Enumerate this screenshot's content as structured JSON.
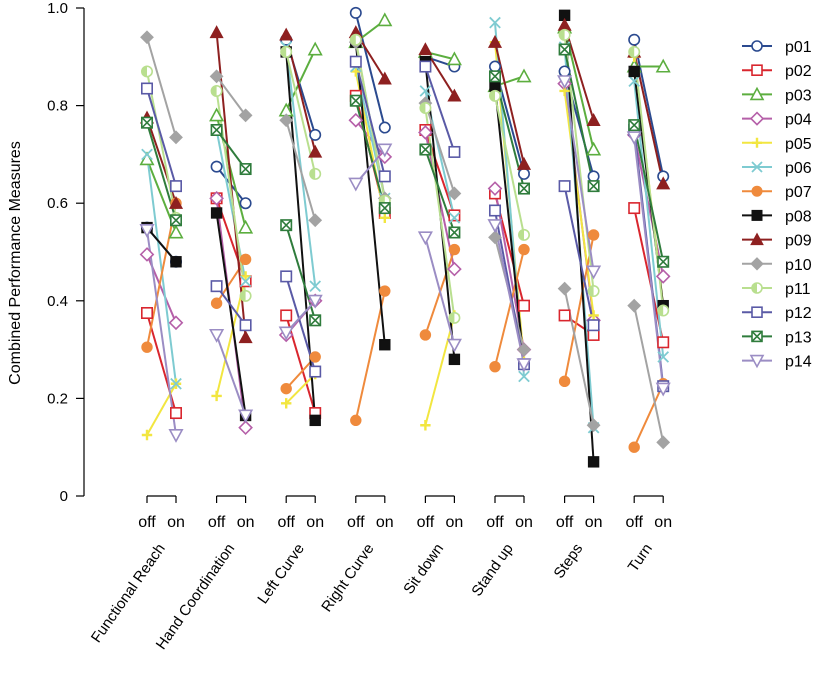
{
  "chart_data": {
    "type": "line",
    "title": "",
    "ylabel": "Combined  Performance Measures",
    "xlabel": "",
    "ylim": [
      0,
      1
    ],
    "yticks": [
      "0",
      "0.2",
      "0.4",
      "0.6",
      "0.8",
      "1.0"
    ],
    "ytick_values": [
      0,
      0.2,
      0.4,
      0.6,
      0.8,
      1.0
    ],
    "condition_labels": [
      "off",
      "on"
    ],
    "categories": [
      "Functional Reach",
      "Hand Coordination",
      "Left Curve",
      "Right Curve",
      "Sit down",
      "Stand up",
      "Steps",
      "Turn"
    ],
    "legend_position": "right",
    "series": [
      {
        "name": "p01",
        "color": "#2b4a8f",
        "marker": "circle-open",
        "values": [
          [
            0.55,
            0.48
          ],
          [
            0.675,
            0.6
          ],
          [
            0.935,
            0.74
          ],
          [
            0.99,
            0.755
          ],
          [
            0.9,
            0.88
          ],
          [
            0.88,
            0.66
          ],
          [
            0.87,
            0.655
          ],
          [
            0.935,
            0.655
          ]
        ]
      },
      {
        "name": "p02",
        "color": "#d9262e",
        "marker": "square-open",
        "values": [
          [
            0.375,
            0.17
          ],
          [
            0.61,
            0.44
          ],
          [
            0.37,
            0.17
          ],
          [
            0.82,
            0.58
          ],
          [
            0.75,
            0.575
          ],
          [
            0.62,
            0.39
          ],
          [
            0.37,
            0.33
          ],
          [
            0.59,
            0.315
          ]
        ]
      },
      {
        "name": "p03",
        "color": "#5cae3f",
        "marker": "triangle-up-open",
        "values": [
          [
            0.69,
            0.54
          ],
          [
            0.78,
            0.55
          ],
          [
            0.79,
            0.915
          ],
          [
            0.93,
            0.975
          ],
          [
            0.91,
            0.895
          ],
          [
            0.84,
            0.86
          ],
          [
            0.96,
            0.71
          ],
          [
            0.88,
            0.88
          ]
        ]
      },
      {
        "name": "p04",
        "color": "#b55fa8",
        "marker": "diamond-open",
        "values": [
          [
            0.495,
            0.355
          ],
          [
            0.61,
            0.14
          ],
          [
            0.33,
            0.4
          ],
          [
            0.77,
            0.695
          ],
          [
            0.745,
            0.465
          ],
          [
            0.63,
            0.3
          ],
          [
            0.845,
            0.36
          ],
          [
            0.74,
            0.45
          ]
        ]
      },
      {
        "name": "p05",
        "color": "#f2e640",
        "marker": "cross-star",
        "values": [
          [
            0.125,
            0.23
          ],
          [
            0.205,
            0.45
          ],
          [
            0.19,
            0.25
          ],
          [
            0.87,
            0.57
          ],
          [
            0.145,
            0.37
          ],
          [
            0.93,
            0.275
          ],
          [
            0.83,
            0.37
          ],
          [
            0.9,
            0.39
          ]
        ]
      },
      {
        "name": "p06",
        "color": "#7ecbd1",
        "marker": "x",
        "values": [
          [
            0.7,
            0.23
          ],
          [
            0.75,
            0.44
          ],
          [
            0.92,
            0.43
          ],
          [
            0.88,
            0.61
          ],
          [
            0.83,
            0.57
          ],
          [
            0.97,
            0.245
          ],
          [
            0.92,
            0.14
          ],
          [
            0.85,
            0.285
          ]
        ]
      },
      {
        "name": "p07",
        "color": "#ef8a3c",
        "marker": "circle-filled",
        "values": [
          [
            0.305,
            0.6
          ],
          [
            0.395,
            0.485
          ],
          [
            0.22,
            0.285
          ],
          [
            0.155,
            0.42
          ],
          [
            0.33,
            0.505
          ],
          [
            0.265,
            0.505
          ],
          [
            0.235,
            0.535
          ],
          [
            0.1,
            0.23
          ]
        ]
      },
      {
        "name": "p08",
        "color": "#111111",
        "marker": "square-filled",
        "values": [
          [
            0.55,
            0.48
          ],
          [
            0.58,
            0.165
          ],
          [
            0.91,
            0.155
          ],
          [
            0.93,
            0.31
          ],
          [
            0.89,
            0.28
          ],
          [
            0.84,
            0.27
          ],
          [
            0.985,
            0.07
          ],
          [
            0.87,
            0.39
          ]
        ]
      },
      {
        "name": "p09",
        "color": "#8e2020",
        "marker": "triangle-up-filled",
        "values": [
          [
            0.775,
            0.6
          ],
          [
            0.95,
            0.325
          ],
          [
            0.945,
            0.705
          ],
          [
            0.95,
            0.855
          ],
          [
            0.915,
            0.82
          ],
          [
            0.93,
            0.68
          ],
          [
            0.965,
            0.77
          ],
          [
            0.91,
            0.64
          ]
        ]
      },
      {
        "name": "p10",
        "color": "#a3a3a3",
        "marker": "diamond-filled",
        "values": [
          [
            0.94,
            0.735
          ],
          [
            0.86,
            0.78
          ],
          [
            0.77,
            0.565
          ],
          [
            0.93,
            0.61
          ],
          [
            0.805,
            0.62
          ],
          [
            0.53,
            0.3
          ],
          [
            0.425,
            0.145
          ],
          [
            0.39,
            0.11
          ]
        ]
      },
      {
        "name": "p11",
        "color": "#b9df8f",
        "marker": "circle-half",
        "values": [
          [
            0.87,
            0.57
          ],
          [
            0.83,
            0.41
          ],
          [
            0.91,
            0.66
          ],
          [
            0.935,
            0.605
          ],
          [
            0.795,
            0.365
          ],
          [
            0.82,
            0.535
          ],
          [
            0.945,
            0.42
          ],
          [
            0.91,
            0.38
          ]
        ]
      },
      {
        "name": "p12",
        "color": "#5a5aa6",
        "marker": "square-open",
        "values": [
          [
            0.835,
            0.635
          ],
          [
            0.43,
            0.35
          ],
          [
            0.45,
            0.255
          ],
          [
            0.89,
            0.655
          ],
          [
            0.88,
            0.705
          ],
          [
            0.585,
            0.27
          ],
          [
            0.635,
            0.35
          ],
          [
            0.75,
            0.225
          ]
        ]
      },
      {
        "name": "p13",
        "color": "#2f7c3c",
        "marker": "square-x",
        "values": [
          [
            0.765,
            0.565
          ],
          [
            0.75,
            0.67
          ],
          [
            0.555,
            0.36
          ],
          [
            0.81,
            0.59
          ],
          [
            0.71,
            0.54
          ],
          [
            0.86,
            0.63
          ],
          [
            0.915,
            0.635
          ],
          [
            0.76,
            0.48
          ]
        ]
      },
      {
        "name": "p14",
        "color": "#9b8dc4",
        "marker": "triangle-down-open",
        "values": [
          [
            0.545,
            0.125
          ],
          [
            0.33,
            0.165
          ],
          [
            0.335,
            0.4
          ],
          [
            0.64,
            0.71
          ],
          [
            0.53,
            0.31
          ],
          [
            0.555,
            0.27
          ],
          [
            0.85,
            0.46
          ],
          [
            0.735,
            0.22
          ]
        ]
      }
    ]
  }
}
